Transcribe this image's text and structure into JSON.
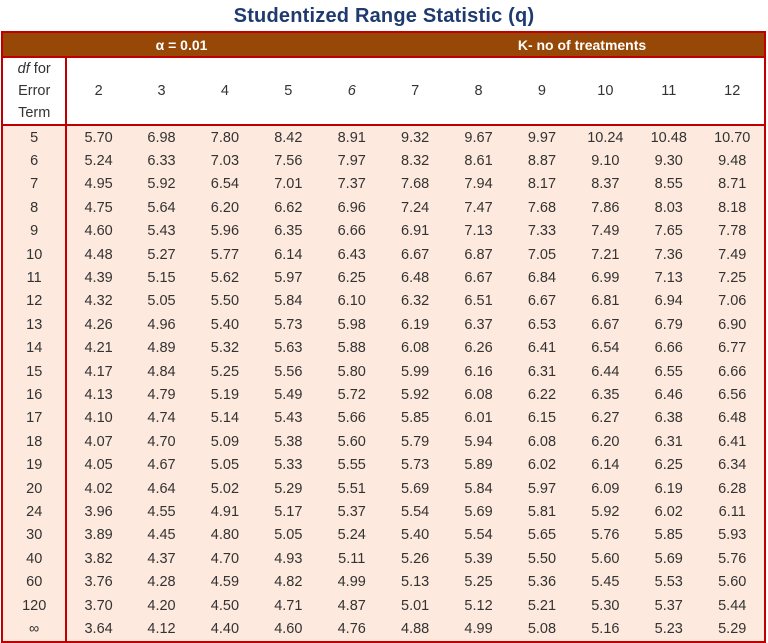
{
  "title": "Studentized Range Statistic (q)",
  "alpha_label": "α = 0.01",
  "k_label": "K- no of treatments",
  "row_header": {
    "italic": "df",
    "rest1": " for Error",
    "rest2": "Term"
  },
  "columns": [
    "2",
    "3",
    "4",
    "5",
    "6",
    "7",
    "8",
    "9",
    "10",
    "11",
    "12"
  ],
  "colors": {
    "band": "#974706",
    "border": "#c00000",
    "body": "#fde9dd",
    "title": "#1f3a6e"
  },
  "rows": [
    {
      "df": "5",
      "values": [
        "5.70",
        "6.98",
        "7.80",
        "8.42",
        "8.91",
        "9.32",
        "9.67",
        "9.97",
        "10.24",
        "10.48",
        "10.70"
      ]
    },
    {
      "df": "6",
      "values": [
        "5.24",
        "6.33",
        "7.03",
        "7.56",
        "7.97",
        "8.32",
        "8.61",
        "8.87",
        "9.10",
        "9.30",
        "9.48"
      ]
    },
    {
      "df": "7",
      "values": [
        "4.95",
        "5.92",
        "6.54",
        "7.01",
        "7.37",
        "7.68",
        "7.94",
        "8.17",
        "8.37",
        "8.55",
        "8.71"
      ]
    },
    {
      "df": "8",
      "values": [
        "4.75",
        "5.64",
        "6.20",
        "6.62",
        "6.96",
        "7.24",
        "7.47",
        "7.68",
        "7.86",
        "8.03",
        "8.18"
      ]
    },
    {
      "df": "9",
      "values": [
        "4.60",
        "5.43",
        "5.96",
        "6.35",
        "6.66",
        "6.91",
        "7.13",
        "7.33",
        "7.49",
        "7.65",
        "7.78"
      ]
    },
    {
      "df": "10",
      "values": [
        "4.48",
        "5.27",
        "5.77",
        "6.14",
        "6.43",
        "6.67",
        "6.87",
        "7.05",
        "7.21",
        "7.36",
        "7.49"
      ]
    },
    {
      "df": "11",
      "values": [
        "4.39",
        "5.15",
        "5.62",
        "5.97",
        "6.25",
        "6.48",
        "6.67",
        "6.84",
        "6.99",
        "7.13",
        "7.25"
      ]
    },
    {
      "df": "12",
      "values": [
        "4.32",
        "5.05",
        "5.50",
        "5.84",
        "6.10",
        "6.32",
        "6.51",
        "6.67",
        "6.81",
        "6.94",
        "7.06"
      ]
    },
    {
      "df": "13",
      "values": [
        "4.26",
        "4.96",
        "5.40",
        "5.73",
        "5.98",
        "6.19",
        "6.37",
        "6.53",
        "6.67",
        "6.79",
        "6.90"
      ]
    },
    {
      "df": "14",
      "values": [
        "4.21",
        "4.89",
        "5.32",
        "5.63",
        "5.88",
        "6.08",
        "6.26",
        "6.41",
        "6.54",
        "6.66",
        "6.77"
      ]
    },
    {
      "df": "15",
      "values": [
        "4.17",
        "4.84",
        "5.25",
        "5.56",
        "5.80",
        "5.99",
        "6.16",
        "6.31",
        "6.44",
        "6.55",
        "6.66"
      ]
    },
    {
      "df": "16",
      "values": [
        "4.13",
        "4.79",
        "5.19",
        "5.49",
        "5.72",
        "5.92",
        "6.08",
        "6.22",
        "6.35",
        "6.46",
        "6.56"
      ]
    },
    {
      "df": "17",
      "values": [
        "4.10",
        "4.74",
        "5.14",
        "5.43",
        "5.66",
        "5.85",
        "6.01",
        "6.15",
        "6.27",
        "6.38",
        "6.48"
      ]
    },
    {
      "df": "18",
      "values": [
        "4.07",
        "4.70",
        "5.09",
        "5.38",
        "5.60",
        "5.79",
        "5.94",
        "6.08",
        "6.20",
        "6.31",
        "6.41"
      ]
    },
    {
      "df": "19",
      "values": [
        "4.05",
        "4.67",
        "5.05",
        "5.33",
        "5.55",
        "5.73",
        "5.89",
        "6.02",
        "6.14",
        "6.25",
        "6.34"
      ]
    },
    {
      "df": "20",
      "values": [
        "4.02",
        "4.64",
        "5.02",
        "5.29",
        "5.51",
        "5.69",
        "5.84",
        "5.97",
        "6.09",
        "6.19",
        "6.28"
      ]
    },
    {
      "df": "24",
      "values": [
        "3.96",
        "4.55",
        "4.91",
        "5.17",
        "5.37",
        "5.54",
        "5.69",
        "5.81",
        "5.92",
        "6.02",
        "6.11"
      ]
    },
    {
      "df": "30",
      "values": [
        "3.89",
        "4.45",
        "4.80",
        "5.05",
        "5.24",
        "5.40",
        "5.54",
        "5.65",
        "5.76",
        "5.85",
        "5.93"
      ]
    },
    {
      "df": "40",
      "values": [
        "3.82",
        "4.37",
        "4.70",
        "4.93",
        "5.11",
        "5.26",
        "5.39",
        "5.50",
        "5.60",
        "5.69",
        "5.76"
      ]
    },
    {
      "df": "60",
      "values": [
        "3.76",
        "4.28",
        "4.59",
        "4.82",
        "4.99",
        "5.13",
        "5.25",
        "5.36",
        "5.45",
        "5.53",
        "5.60"
      ]
    },
    {
      "df": "120",
      "values": [
        "3.70",
        "4.20",
        "4.50",
        "4.71",
        "4.87",
        "5.01",
        "5.12",
        "5.21",
        "5.30",
        "5.37",
        "5.44"
      ]
    },
    {
      "df": "∞",
      "values": [
        "3.64",
        "4.12",
        "4.40",
        "4.60",
        "4.76",
        "4.88",
        "4.99",
        "5.08",
        "5.16",
        "5.23",
        "5.29"
      ]
    }
  ]
}
